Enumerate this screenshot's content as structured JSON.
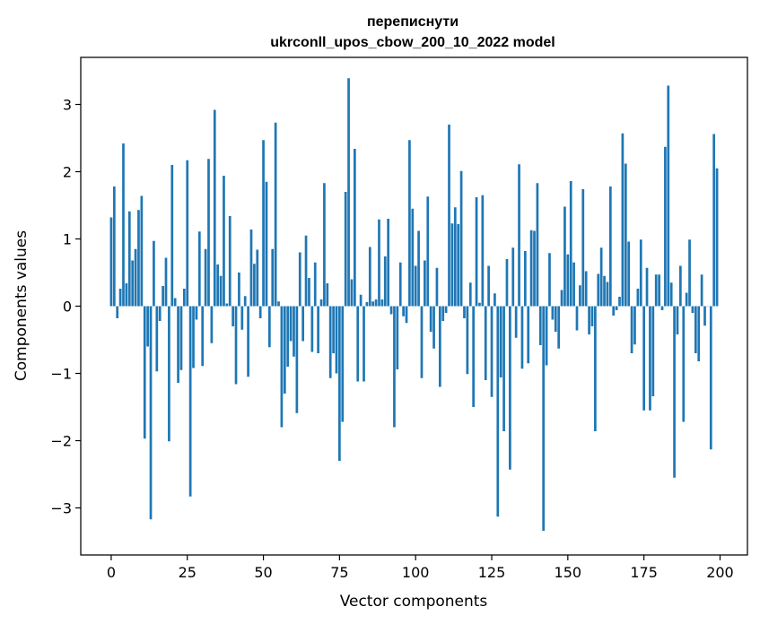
{
  "chart_data": {
    "type": "bar",
    "title": [
      "переписнути",
      "ukrconll_upos_cbow_200_10_2022 model"
    ],
    "xlabel": "Vector components",
    "ylabel": "Components values",
    "xlim": [
      -10,
      209
    ],
    "ylim": [
      -3.7,
      3.7
    ],
    "xticks": [
      0,
      25,
      50,
      75,
      100,
      125,
      150,
      175,
      200
    ],
    "yticks": [
      -3,
      -2,
      -1,
      0,
      1,
      2,
      3
    ],
    "bar_color": "#1f77b4",
    "grid": false,
    "x": [
      0,
      1,
      2,
      3,
      4,
      5,
      6,
      7,
      8,
      9,
      10,
      11,
      12,
      13,
      14,
      15,
      16,
      17,
      18,
      19,
      20,
      21,
      22,
      23,
      24,
      25,
      26,
      27,
      28,
      29,
      30,
      31,
      32,
      33,
      34,
      35,
      36,
      37,
      38,
      39,
      40,
      41,
      42,
      43,
      44,
      45,
      46,
      47,
      48,
      49,
      50,
      51,
      52,
      53,
      54,
      55,
      56,
      57,
      58,
      59,
      60,
      61,
      62,
      63,
      64,
      65,
      66,
      67,
      68,
      69,
      70,
      71,
      72,
      73,
      74,
      75,
      76,
      77,
      78,
      79,
      80,
      81,
      82,
      83,
      84,
      85,
      86,
      87,
      88,
      89,
      90,
      91,
      92,
      93,
      94,
      95,
      96,
      97,
      98,
      99,
      100,
      101,
      102,
      103,
      104,
      105,
      106,
      107,
      108,
      109,
      110,
      111,
      112,
      113,
      114,
      115,
      116,
      117,
      118,
      119,
      120,
      121,
      122,
      123,
      124,
      125,
      126,
      127,
      128,
      129,
      130,
      131,
      132,
      133,
      134,
      135,
      136,
      137,
      138,
      139,
      140,
      141,
      142,
      143,
      144,
      145,
      146,
      147,
      148,
      149,
      150,
      151,
      152,
      153,
      154,
      155,
      156,
      157,
      158,
      159,
      160,
      161,
      162,
      163,
      164,
      165,
      166,
      167,
      168,
      169,
      170,
      171,
      172,
      173,
      174,
      175,
      176,
      177,
      178,
      179,
      180,
      181,
      182,
      183,
      184,
      185,
      186,
      187,
      188,
      189,
      190,
      191,
      192,
      193,
      194,
      195,
      196,
      197,
      198,
      199
    ],
    "values": [
      1.32,
      1.78,
      -0.18,
      0.26,
      2.42,
      0.34,
      1.41,
      0.68,
      0.85,
      1.43,
      1.64,
      -1.97,
      -0.6,
      -3.17,
      0.97,
      -0.97,
      -0.22,
      0.3,
      0.72,
      -2.01,
      2.1,
      0.12,
      -1.14,
      -0.95,
      0.26,
      2.17,
      -2.83,
      -0.92,
      -0.2,
      1.11,
      -0.89,
      0.85,
      2.19,
      -0.55,
      2.92,
      0.62,
      0.45,
      1.94,
      0.04,
      1.34,
      -0.3,
      -1.16,
      0.5,
      -0.35,
      0.15,
      -1.05,
      1.14,
      0.63,
      0.84,
      -0.18,
      2.47,
      1.85,
      -0.61,
      0.85,
      2.73,
      0.07,
      -1.8,
      -1.3,
      -0.9,
      -0.52,
      -0.75,
      -1.59,
      0.8,
      -0.52,
      1.05,
      0.42,
      -0.68,
      0.65,
      -0.7,
      0.1,
      1.83,
      0.34,
      -1.07,
      -0.7,
      -1.0,
      -2.3,
      -1.72,
      1.7,
      3.39,
      0.4,
      2.34,
      -1.12,
      0.17,
      -1.12,
      0.06,
      0.88,
      0.07,
      0.1,
      1.29,
      0.1,
      0.74,
      1.3,
      -0.12,
      -1.8,
      -0.94,
      0.65,
      -0.15,
      -0.25,
      2.47,
      1.45,
      0.6,
      1.12,
      -1.07,
      0.68,
      1.63,
      -0.38,
      -0.63,
      0.57,
      -1.2,
      -0.22,
      -0.1,
      2.7,
      1.23,
      1.47,
      1.22,
      2.01,
      -0.18,
      -1.01,
      0.35,
      -1.5,
      1.62,
      0.05,
      1.65,
      -1.1,
      0.6,
      -1.35,
      0.19,
      -3.13,
      -1.06,
      -1.86,
      0.7,
      -2.43,
      0.87,
      -0.47,
      2.11,
      -0.93,
      0.82,
      -0.85,
      1.13,
      1.12,
      1.83,
      -0.58,
      -3.34,
      -0.88,
      0.79,
      -0.2,
      -0.38,
      -0.63,
      0.24,
      1.48,
      0.77,
      1.86,
      0.65,
      -0.36,
      0.31,
      1.74,
      0.52,
      -0.42,
      -0.3,
      -1.86,
      0.48,
      0.87,
      0.45,
      0.36,
      1.78,
      -0.14,
      -0.06,
      0.14,
      2.57,
      2.12,
      0.96,
      -0.7,
      -0.57,
      0.26,
      0.99,
      -1.55,
      0.57,
      -1.55,
      -1.34,
      0.47,
      0.47,
      -0.06,
      2.37,
      3.28,
      0.35,
      -2.55,
      -0.42,
      0.6,
      -1.72,
      0.2,
      0.99,
      -0.1,
      -0.7,
      -0.82,
      0.47,
      -0.29,
      0.0,
      -2.13,
      2.56,
      2.05
    ]
  }
}
